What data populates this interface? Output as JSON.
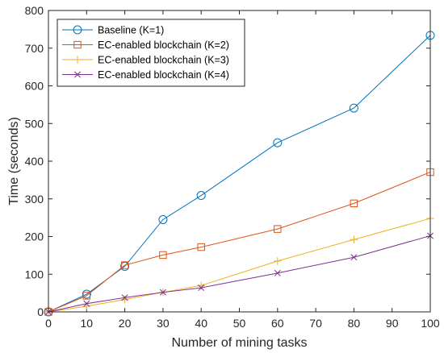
{
  "chart_data": {
    "type": "line",
    "title": "",
    "xlabel": "Number of mining tasks",
    "ylabel": "Time (seconds)",
    "xlim": [
      0,
      100
    ],
    "ylim": [
      0,
      800
    ],
    "xticks": [
      0,
      10,
      20,
      30,
      40,
      50,
      60,
      70,
      80,
      90,
      100
    ],
    "yticks": [
      0,
      100,
      200,
      300,
      400,
      500,
      600,
      700,
      800
    ],
    "x": [
      0,
      10,
      20,
      30,
      40,
      60,
      80,
      100
    ],
    "grid": false,
    "legend_position": "top-left",
    "series": [
      {
        "name": "Baseline (K=1)",
        "color": "#0072BD",
        "marker": "circle",
        "values": [
          0,
          47,
          121,
          245,
          309,
          449,
          541,
          734
        ]
      },
      {
        "name": "EC-enabled blockchain (K=2)",
        "color": "#D95319",
        "marker": "square",
        "values": [
          0,
          43,
          124,
          151,
          172,
          220,
          288,
          371
        ]
      },
      {
        "name": "EC-enabled blockchain (K=3)",
        "color": "#EDB120",
        "marker": "plus",
        "values": [
          0,
          15,
          33,
          52,
          70,
          135,
          192,
          248
        ]
      },
      {
        "name": "EC-enabled blockchain (K=4)",
        "color": "#7E2F8E",
        "marker": "x",
        "values": [
          0,
          22,
          38,
          52,
          64,
          103,
          145,
          202
        ]
      }
    ]
  }
}
